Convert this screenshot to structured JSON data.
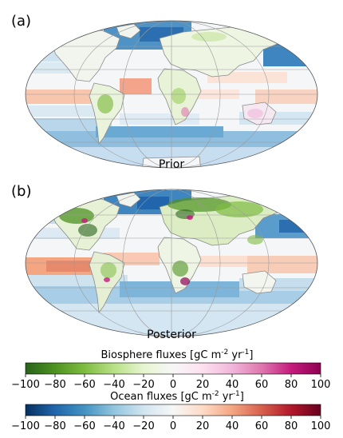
{
  "panels": [
    {
      "letter": "(a)",
      "title": "Prior"
    },
    {
      "letter": "(b)",
      "title": "Posterior"
    }
  ],
  "colorbars": [
    {
      "title_main": "Biosphere fluxes [gC m",
      "title_sup1": "-2",
      "title_mid": " yr",
      "title_sup2": "-1",
      "title_end": "]",
      "ticks": [
        "−100",
        "−80",
        "−60",
        "−40",
        "−20",
        "0",
        "20",
        "40",
        "60",
        "80",
        "100"
      ],
      "range": [
        -100,
        100
      ],
      "colormap": "PiYG_r",
      "colors": [
        "#276419",
        "#4d9221",
        "#7fbc41",
        "#b8e186",
        "#e6f5d0",
        "#f7f7f7",
        "#fde0ef",
        "#f1b6da",
        "#de77ae",
        "#c51b7d",
        "#8e0152"
      ]
    },
    {
      "title_main": "Ocean fluxes [gC m",
      "title_sup1": "-2",
      "title_mid": " yr",
      "title_sup2": "-1",
      "title_end": "]",
      "ticks": [
        "−100",
        "−80",
        "−60",
        "−40",
        "−20",
        "0",
        "20",
        "40",
        "60",
        "80",
        "100"
      ],
      "range": [
        -100,
        100
      ],
      "colormap": "RdBu_r",
      "colors": [
        "#053061",
        "#2166ac",
        "#4393c3",
        "#92c5de",
        "#d1e5f0",
        "#f7f7f7",
        "#fddbc7",
        "#f4a582",
        "#d6604d",
        "#b2182b",
        "#67001f"
      ]
    }
  ]
}
